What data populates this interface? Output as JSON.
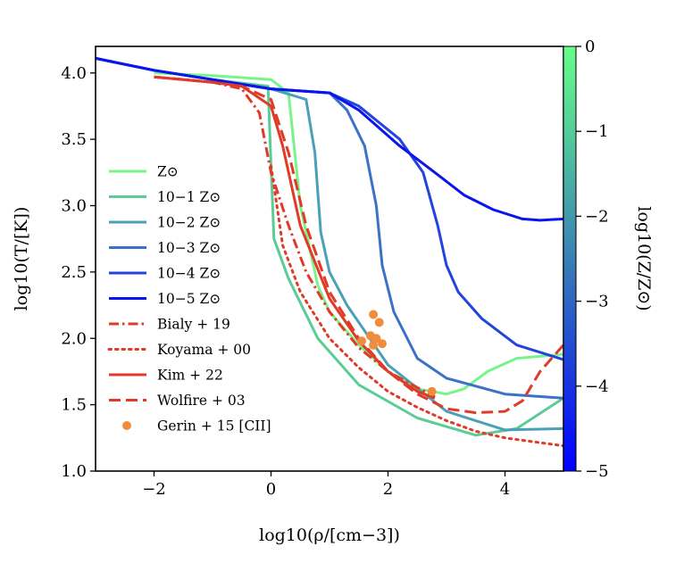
{
  "chart_data": {
    "type": "line",
    "xlabel": "log10(ρ/[cm−3])",
    "ylabel": "log10(T/[K])",
    "colorbar_label": "log10(Z/Z⊙)",
    "xlim": [
      -3,
      5
    ],
    "ylim": [
      1.0,
      4.2
    ],
    "xticks": [
      {
        "v": -2,
        "label": "−2"
      },
      {
        "v": 0,
        "label": "0"
      },
      {
        "v": 2,
        "label": "2"
      },
      {
        "v": 4,
        "label": "4"
      }
    ],
    "yticks": [
      {
        "v": 1.0,
        "label": "1.0"
      },
      {
        "v": 1.5,
        "label": "1.5"
      },
      {
        "v": 2.0,
        "label": "2.0"
      },
      {
        "v": 2.5,
        "label": "2.5"
      },
      {
        "v": 3.0,
        "label": "3.0"
      },
      {
        "v": 3.5,
        "label": "3.5"
      },
      {
        "v": 4.0,
        "label": "4.0"
      }
    ],
    "colorbar": {
      "range": [
        -5,
        0
      ],
      "ticks": [
        {
          "v": 0,
          "label": "0"
        },
        {
          "v": -1,
          "label": "−1"
        },
        {
          "v": -2,
          "label": "−2"
        },
        {
          "v": -3,
          "label": "−3"
        },
        {
          "v": -4,
          "label": "−4"
        },
        {
          "v": -5,
          "label": "−5"
        }
      ],
      "color_top": "#66ff88",
      "color_mid": "#3a7fb5",
      "color_bottom": "#0000ff"
    },
    "series": [
      {
        "name": "Z⊙",
        "style": "solid",
        "color": "#77f58a",
        "x": [
          -2,
          -1,
          0,
          0.3,
          0.5,
          0.8,
          1.0,
          1.5,
          2.0,
          2.5,
          3.0,
          3.3,
          3.7,
          4.2,
          5.0
        ],
        "y": [
          4.0,
          3.98,
          3.95,
          3.85,
          3.0,
          2.4,
          2.2,
          1.95,
          1.75,
          1.62,
          1.58,
          1.62,
          1.75,
          1.85,
          1.88
        ]
      },
      {
        "name": "10−1 Z⊙",
        "style": "solid",
        "color": "#5ccc95",
        "x": [
          -3,
          -2,
          -1,
          -0.05,
          0.0,
          0.05,
          0.3,
          0.8,
          1.5,
          2.5,
          3.5,
          4.2,
          5.0
        ],
        "y": [
          4.11,
          4.02,
          3.95,
          3.9,
          3.3,
          2.75,
          2.45,
          2.0,
          1.65,
          1.4,
          1.27,
          1.32,
          1.55
        ]
      },
      {
        "name": "10−2 Z⊙",
        "style": "solid",
        "color": "#4aa0b8",
        "x": [
          -3,
          -2,
          -1,
          0,
          0.6,
          0.75,
          0.85,
          1.0,
          1.3,
          2.0,
          3.0,
          4.0,
          5.0
        ],
        "y": [
          4.11,
          4.02,
          3.95,
          3.88,
          3.8,
          3.4,
          2.8,
          2.5,
          2.25,
          1.8,
          1.45,
          1.31,
          1.32
        ]
      },
      {
        "name": "10−3 Z⊙",
        "style": "solid",
        "color": "#3b72c8",
        "x": [
          -3,
          -2,
          -1,
          0,
          1.0,
          1.3,
          1.6,
          1.8,
          1.9,
          2.1,
          2.5,
          3.0,
          4.0,
          5.0
        ],
        "y": [
          4.11,
          4.02,
          3.95,
          3.88,
          3.85,
          3.72,
          3.45,
          3.0,
          2.55,
          2.2,
          1.85,
          1.7,
          1.58,
          1.55
        ]
      },
      {
        "name": "10−4 Z⊙",
        "style": "solid",
        "color": "#2244dd",
        "x": [
          -3,
          -2,
          -1,
          0,
          1.0,
          1.5,
          2.2,
          2.6,
          2.85,
          3.0,
          3.2,
          3.6,
          4.2,
          5.0
        ],
        "y": [
          4.11,
          4.02,
          3.95,
          3.88,
          3.85,
          3.75,
          3.5,
          3.25,
          2.85,
          2.55,
          2.35,
          2.15,
          1.95,
          1.84
        ]
      },
      {
        "name": "10−5 Z⊙",
        "style": "solid",
        "color": "#0a14ee",
        "x": [
          -3,
          -2,
          -1,
          0,
          1.0,
          1.5,
          2.2,
          2.8,
          3.3,
          3.8,
          4.3,
          4.6,
          5.0
        ],
        "y": [
          4.11,
          4.02,
          3.95,
          3.88,
          3.85,
          3.72,
          3.45,
          3.25,
          3.08,
          2.97,
          2.9,
          2.89,
          2.9
        ]
      },
      {
        "name": "Bialy + 19",
        "style": "dashdot",
        "color": "#e03a28",
        "x": [
          -2,
          -1,
          -0.5,
          -0.2,
          0.0,
          0.3,
          0.6,
          1.0,
          1.5,
          2.0,
          2.5,
          2.8
        ],
        "y": [
          3.97,
          3.93,
          3.88,
          3.7,
          3.25,
          2.85,
          2.5,
          2.2,
          1.93,
          1.75,
          1.63,
          1.56
        ]
      },
      {
        "name": "Koyama + 00",
        "style": "dotted",
        "color": "#e03a28",
        "x": [
          0.0,
          0.2,
          0.5,
          1.0,
          1.5,
          2.0,
          2.5,
          3.0,
          3.5,
          4.0,
          4.5,
          5.0
        ],
        "y": [
          3.3,
          2.7,
          2.35,
          2.0,
          1.78,
          1.6,
          1.48,
          1.38,
          1.3,
          1.25,
          1.22,
          1.19
        ]
      },
      {
        "name": "Kim + 22",
        "style": "solid",
        "color": "#e03a28",
        "x": [
          -2,
          -1,
          -0.5,
          0.0,
          0.2,
          0.5,
          1.0,
          1.5,
          2.0,
          2.5,
          2.8
        ],
        "y": [
          3.97,
          3.93,
          3.9,
          3.75,
          3.45,
          2.85,
          2.3,
          1.98,
          1.75,
          1.6,
          1.55
        ]
      },
      {
        "name": "Wolfire + 03",
        "style": "dashed",
        "color": "#e03a28",
        "x": [
          -2,
          -1,
          -0.5,
          0.0,
          0.3,
          0.6,
          1.0,
          1.5,
          2.0,
          2.5,
          3.0,
          3.5,
          4.0,
          4.3,
          4.6,
          5.0
        ],
        "y": [
          3.97,
          3.93,
          3.9,
          3.8,
          3.4,
          2.85,
          2.35,
          2.0,
          1.75,
          1.58,
          1.47,
          1.44,
          1.45,
          1.53,
          1.75,
          1.95
        ]
      }
    ],
    "scatter": {
      "name": "Gerin + 15 [CII]",
      "color": "#f08c3c",
      "x": [
        1.55,
        1.75,
        1.85,
        1.8,
        1.9,
        1.75,
        1.7,
        2.75
      ],
      "y": [
        1.98,
        2.18,
        2.12,
        2.0,
        1.96,
        1.95,
        2.02,
        1.6
      ]
    },
    "legend": {
      "position": "left",
      "items": [
        {
          "label": "Z⊙",
          "style": "solid",
          "color": "#77f58a"
        },
        {
          "label": "10−1 Z⊙",
          "style": "solid",
          "color": "#5ccc95"
        },
        {
          "label": "10−2 Z⊙",
          "style": "solid",
          "color": "#4aa0b8"
        },
        {
          "label": "10−3 Z⊙",
          "style": "solid",
          "color": "#3b72c8"
        },
        {
          "label": "10−4 Z⊙",
          "style": "solid",
          "color": "#2244dd"
        },
        {
          "label": "10−5 Z⊙",
          "style": "solid",
          "color": "#0a14ee"
        },
        {
          "label": "Bialy + 19",
          "style": "dashdot",
          "color": "#e03a28"
        },
        {
          "label": "Koyama + 00",
          "style": "dotted",
          "color": "#e03a28"
        },
        {
          "label": "Kim + 22",
          "style": "solid",
          "color": "#e03a28"
        },
        {
          "label": "Wolfire + 03",
          "style": "dashed",
          "color": "#e03a28"
        },
        {
          "label": "Gerin + 15 [CII]",
          "style": "marker",
          "color": "#f08c3c"
        }
      ]
    }
  }
}
